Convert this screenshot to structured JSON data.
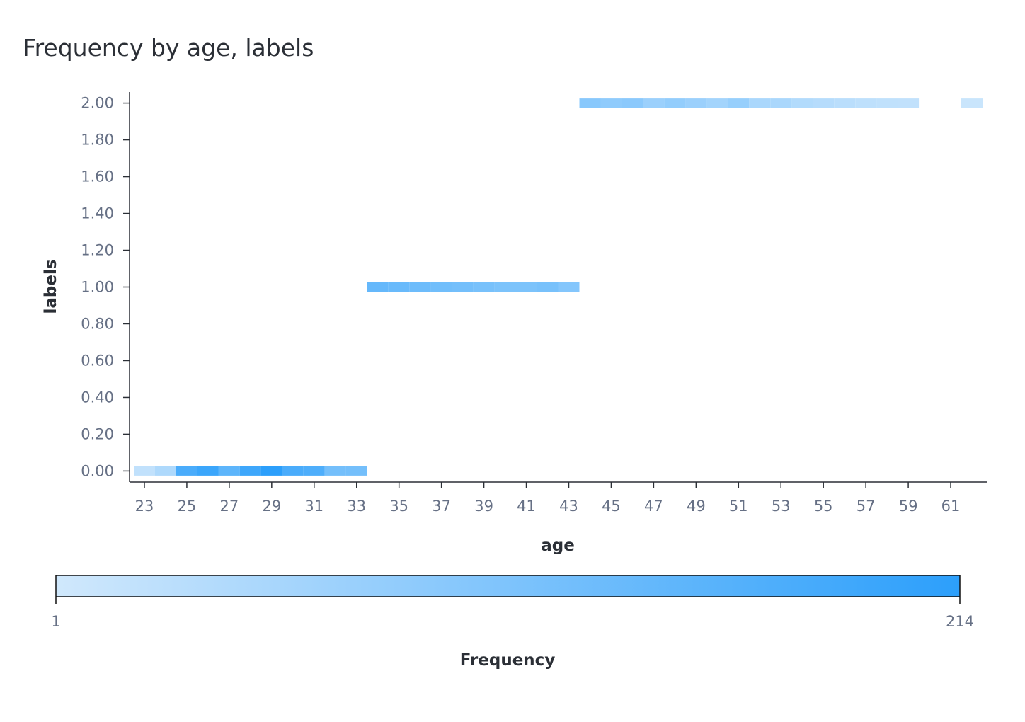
{
  "chart_data": {
    "type": "heatmap",
    "title": "Frequency by age, labels",
    "xlabel": "age",
    "ylabel": "labels",
    "x_ticks": [
      "23",
      "25",
      "27",
      "29",
      "31",
      "33",
      "35",
      "37",
      "39",
      "41",
      "43",
      "45",
      "47",
      "49",
      "51",
      "53",
      "55",
      "57",
      "59",
      "61"
    ],
    "y_ticks": [
      "0.00",
      "0.20",
      "0.40",
      "0.60",
      "0.80",
      "1.00",
      "1.20",
      "1.40",
      "1.60",
      "1.80",
      "2.00"
    ],
    "xlim": [
      22.3,
      62.7
    ],
    "ylim": [
      -0.06,
      2.06
    ],
    "colorbar": {
      "label": "Frequency",
      "min": 1,
      "max": 214,
      "min_label": "1",
      "max_label": "214",
      "color_low": "#d0e8fc",
      "color_high": "#2c9ffb"
    },
    "cells": [
      {
        "age": 23,
        "label": 0,
        "value": 20
      },
      {
        "age": 24,
        "label": 0,
        "value": 45
      },
      {
        "age": 25,
        "label": 0,
        "value": 175
      },
      {
        "age": 26,
        "label": 0,
        "value": 195
      },
      {
        "age": 27,
        "label": 0,
        "value": 150
      },
      {
        "age": 28,
        "label": 0,
        "value": 190
      },
      {
        "age": 29,
        "label": 0,
        "value": 214
      },
      {
        "age": 30,
        "label": 0,
        "value": 175
      },
      {
        "age": 31,
        "label": 0,
        "value": 170
      },
      {
        "age": 32,
        "label": 0,
        "value": 120
      },
      {
        "age": 33,
        "label": 0,
        "value": 120
      },
      {
        "age": 34,
        "label": 1,
        "value": 140
      },
      {
        "age": 35,
        "label": 1,
        "value": 135
      },
      {
        "age": 36,
        "label": 1,
        "value": 130
      },
      {
        "age": 37,
        "label": 1,
        "value": 125
      },
      {
        "age": 38,
        "label": 1,
        "value": 120
      },
      {
        "age": 39,
        "label": 1,
        "value": 115
      },
      {
        "age": 40,
        "label": 1,
        "value": 110
      },
      {
        "age": 41,
        "label": 1,
        "value": 110
      },
      {
        "age": 42,
        "label": 1,
        "value": 115
      },
      {
        "age": 43,
        "label": 1,
        "value": 100
      },
      {
        "age": 44,
        "label": 2,
        "value": 95
      },
      {
        "age": 45,
        "label": 2,
        "value": 85
      },
      {
        "age": 46,
        "label": 2,
        "value": 90
      },
      {
        "age": 47,
        "label": 2,
        "value": 70
      },
      {
        "age": 48,
        "label": 2,
        "value": 80
      },
      {
        "age": 49,
        "label": 2,
        "value": 70
      },
      {
        "age": 50,
        "label": 2,
        "value": 60
      },
      {
        "age": 51,
        "label": 2,
        "value": 75
      },
      {
        "age": 52,
        "label": 2,
        "value": 50
      },
      {
        "age": 53,
        "label": 2,
        "value": 50
      },
      {
        "age": 54,
        "label": 2,
        "value": 40
      },
      {
        "age": 55,
        "label": 2,
        "value": 35
      },
      {
        "age": 56,
        "label": 2,
        "value": 30
      },
      {
        "age": 57,
        "label": 2,
        "value": 25
      },
      {
        "age": 58,
        "label": 2,
        "value": 22
      },
      {
        "age": 59,
        "label": 2,
        "value": 20
      },
      {
        "age": 62,
        "label": 2,
        "value": 10
      }
    ]
  }
}
